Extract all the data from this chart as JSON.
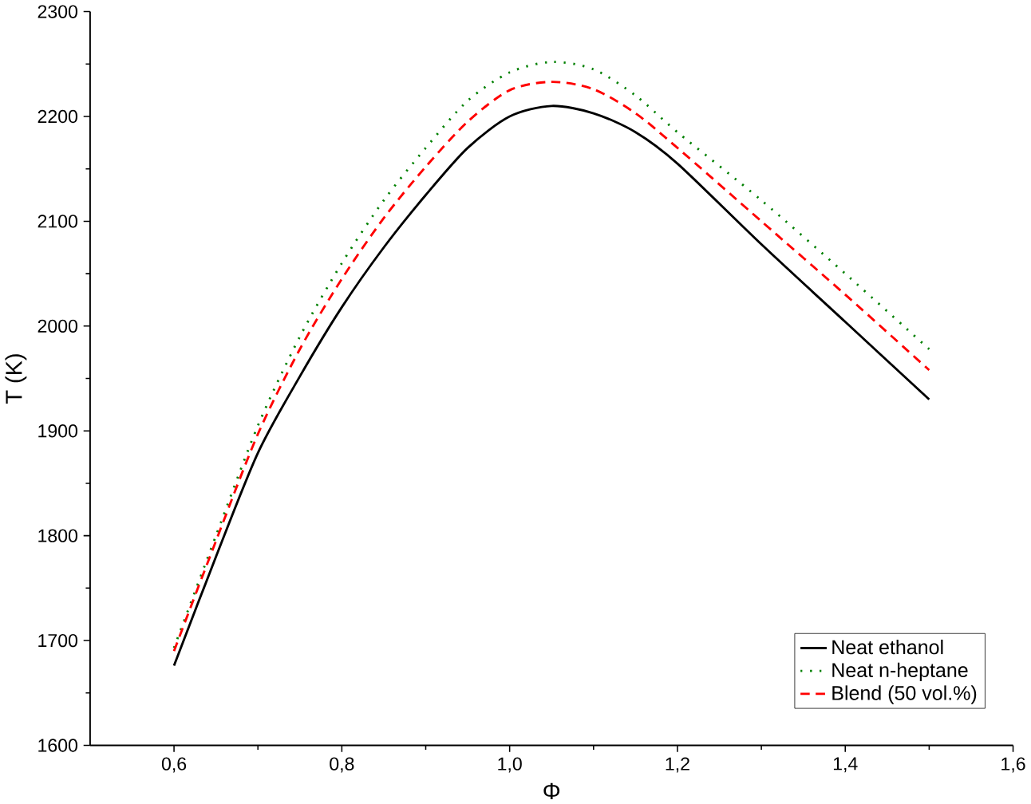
{
  "chart_data": {
    "type": "line",
    "xlabel": "Φ",
    "ylabel": "T (K)",
    "xlim": [
      0.5,
      1.6
    ],
    "ylim": [
      1600,
      2300
    ],
    "xticks": [
      {
        "value": 0.6,
        "label": "0,6"
      },
      {
        "value": 0.8,
        "label": "0,8"
      },
      {
        "value": 1.0,
        "label": "1,0"
      },
      {
        "value": 1.2,
        "label": "1,2"
      },
      {
        "value": 1.4,
        "label": "1,4"
      },
      {
        "value": 1.6,
        "label": "1,6"
      }
    ],
    "yticks": [
      1600,
      1700,
      1800,
      1900,
      2000,
      2100,
      2200,
      2300
    ],
    "x": [
      0.6,
      0.65,
      0.7,
      0.75,
      0.8,
      0.85,
      0.9,
      0.95,
      1.0,
      1.05,
      1.1,
      1.15,
      1.2,
      1.3,
      1.4,
      1.5
    ],
    "grid": false,
    "legend": "bottom right",
    "marker": "none",
    "series": [
      {
        "name": "Neat ethanol",
        "color": "#000000",
        "line_style": "solid",
        "values": [
          1676,
          1780,
          1879,
          1952,
          2018,
          2075,
          2125,
          2170,
          2200,
          2210,
          2203,
          2185,
          2155,
          2078,
          2004,
          1930
        ]
      },
      {
        "name": "Neat n-heptane",
        "color": "#008000",
        "line_style": "dotted",
        "values": [
          1693,
          1800,
          1905,
          1990,
          2060,
          2120,
          2170,
          2215,
          2242,
          2252,
          2245,
          2220,
          2185,
          2120,
          2050,
          1978
        ]
      },
      {
        "name": "Blend (50 vol.%)",
        "color": "#ff0000",
        "line_style": "dashed",
        "values": [
          1690,
          1795,
          1897,
          1978,
          2045,
          2103,
          2152,
          2195,
          2225,
          2233,
          2226,
          2203,
          2170,
          2100,
          2030,
          1958
        ]
      }
    ]
  }
}
